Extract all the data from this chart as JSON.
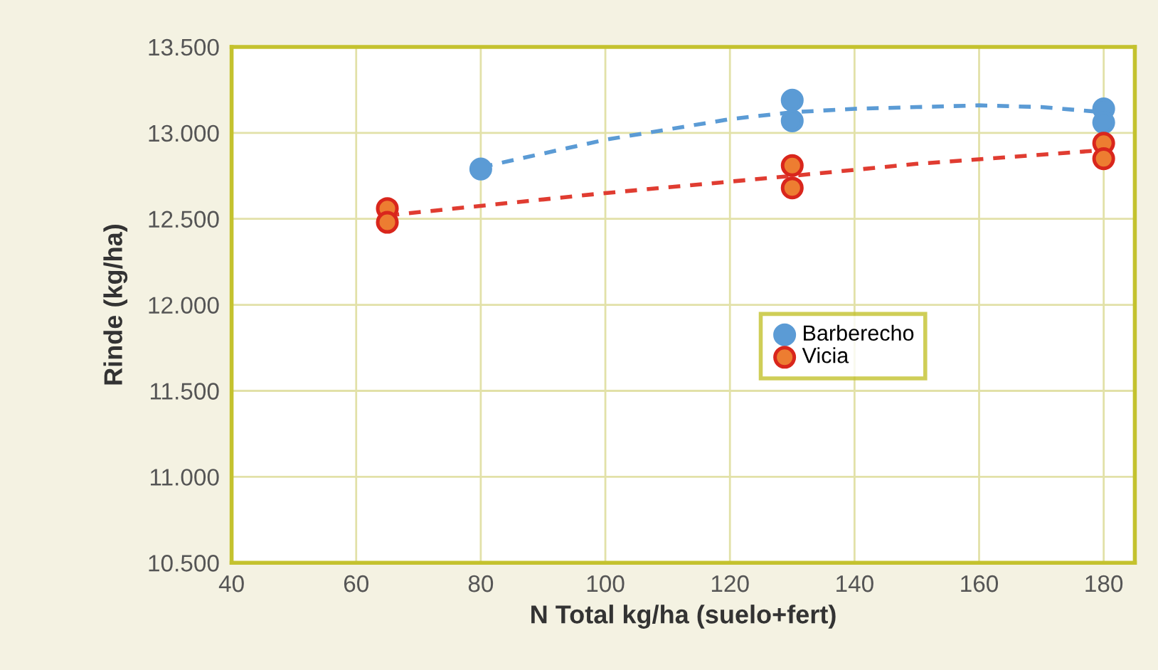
{
  "chart_data": {
    "type": "scatter",
    "xlabel": "N Total kg/ha (suelo+fert)",
    "ylabel": "Rinde (kg/ha)",
    "xlim": [
      40,
      185
    ],
    "xticks": [
      40,
      60,
      80,
      100,
      120,
      140,
      160,
      180
    ],
    "ylim": [
      10500,
      13500
    ],
    "yticks": [
      {
        "value": 10500,
        "label": "10.500"
      },
      {
        "value": 11000,
        "label": "11.000"
      },
      {
        "value": 11500,
        "label": "11.500"
      },
      {
        "value": 12000,
        "label": "12.000"
      },
      {
        "value": 12500,
        "label": "12.500"
      },
      {
        "value": 13000,
        "label": "13.000"
      },
      {
        "value": 13500,
        "label": "13.500"
      }
    ],
    "grid": true,
    "legend": "right",
    "marker": "circle",
    "series": [
      {
        "name": "Barberecho",
        "color": "#5b9bd5",
        "x": [
          80,
          130,
          130,
          180,
          180
        ],
        "values": [
          12790,
          13190,
          13070,
          13140,
          13060
        ]
      },
      {
        "name": "Vicia",
        "color": "#ed7d31",
        "x": [
          65,
          65,
          130,
          130,
          180,
          180
        ],
        "values": [
          12560,
          12480,
          12810,
          12680,
          12940,
          12850
        ]
      },
      {
        "type": "line",
        "line_style": "dashed",
        "marker": "none",
        "color": "#5b9bd5",
        "x": [
          80,
          90,
          100,
          110,
          120,
          130,
          140,
          150,
          160,
          170,
          180
        ],
        "values": [
          12800,
          12880,
          12960,
          13020,
          13080,
          13120,
          13140,
          13150,
          13160,
          13150,
          13120
        ]
      },
      {
        "type": "line",
        "line_style": "dashed",
        "marker": "none",
        "color": "#e03c31",
        "x": [
          65,
          100,
          130,
          150,
          180
        ],
        "values": [
          12520,
          12650,
          12750,
          12820,
          12900
        ]
      }
    ]
  }
}
